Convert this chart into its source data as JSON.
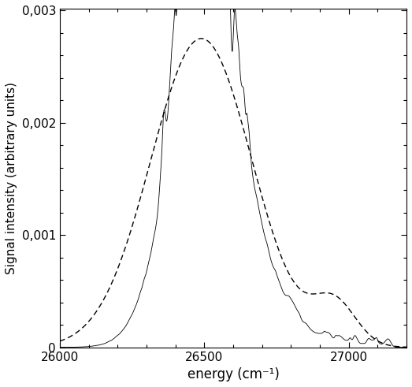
{
  "x_min": 26000,
  "x_max": 27200,
  "y_min": 0,
  "y_max": 0.003,
  "xlabel": "energy (cm⁻¹)",
  "ylabel": "Signal intensity (arbitrary units)",
  "xticks": [
    26000,
    26500,
    27000
  ],
  "yticks": [
    0,
    0.001,
    0.002,
    0.003
  ],
  "ytick_labels": [
    "0",
    "0,001",
    "0,002",
    "0,003"
  ],
  "figsize": [
    5.23,
    4.91
  ],
  "dpi": 100,
  "line_color": "#000000",
  "bg_color": "#ffffff",
  "spine_color": "#000000"
}
